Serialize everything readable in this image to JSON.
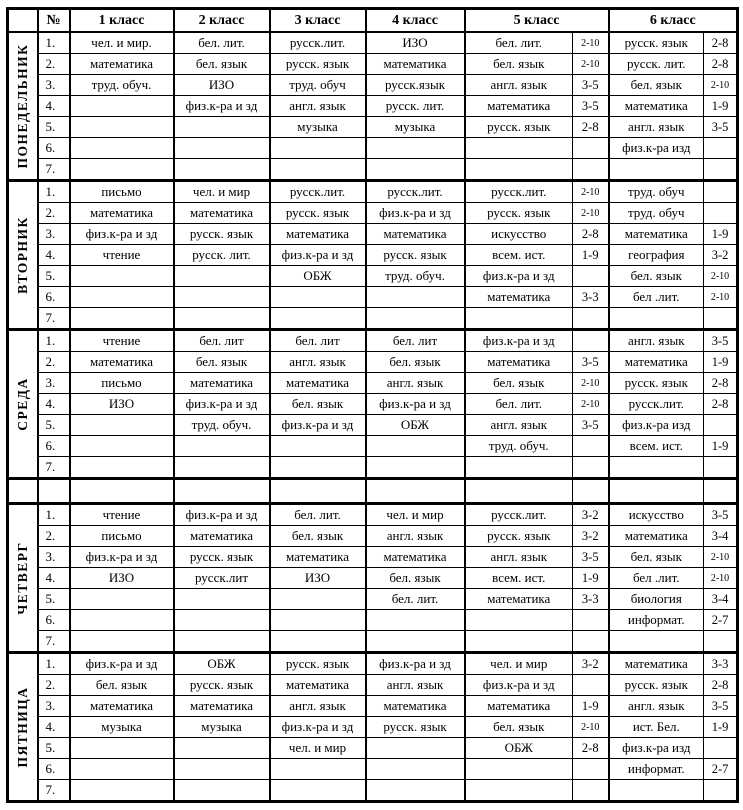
{
  "page": {
    "background": "#ffffff",
    "line_color": "#000000"
  },
  "header": {
    "corner": "",
    "num_label": "№",
    "class_labels": [
      "1 класс",
      "2 класс",
      "3 класс",
      "4 класс",
      "5 класс",
      "6 класс"
    ]
  },
  "days": [
    {
      "label": "ПОНЕДЕЛЬНИК",
      "rows": [
        {
          "n": "1.",
          "cells": [
            "чел. и мир.",
            "бел. лит.",
            "русск.лит.",
            "ИЗО",
            "бел. лит.",
            "2-10",
            "русск. язык",
            "2-8"
          ]
        },
        {
          "n": "2.",
          "cells": [
            "математика",
            "бел. язык",
            "русск. язык",
            "математика",
            "бел. язык",
            "2-10",
            "русск. лит.",
            "2-8"
          ]
        },
        {
          "n": "3.",
          "cells": [
            "труд. обуч.",
            "ИЗО",
            "труд. обуч",
            "русск.язык",
            "англ. язык",
            "3-5",
            "бел. язык",
            "2-10"
          ]
        },
        {
          "n": "4.",
          "cells": [
            "",
            "физ.к-ра и зд",
            "англ. язык",
            "русск. лит.",
            "математика",
            "3-5",
            "математика",
            "1-9"
          ]
        },
        {
          "n": "5.",
          "cells": [
            "",
            "",
            "музыка",
            "музыка",
            "русск. язык",
            "2-8",
            "англ. язык",
            "3-5"
          ]
        },
        {
          "n": "6.",
          "cells": [
            "",
            "",
            "",
            "",
            "",
            "",
            "физ.к-ра изд",
            ""
          ]
        },
        {
          "n": "7.",
          "cells": [
            "",
            "",
            "",
            "",
            "",
            "",
            "",
            ""
          ]
        }
      ]
    },
    {
      "label": "ВТОРНИК",
      "rows": [
        {
          "n": "1.",
          "cells": [
            "письмо",
            "чел. и мир",
            "русск.лит.",
            "русск.лит.",
            "русск.лит.",
            "2-10",
            "труд. обуч",
            ""
          ]
        },
        {
          "n": "2.",
          "cells": [
            "математика",
            "математика",
            "русск. язык",
            "физ.к-ра и зд",
            "русск. язык",
            "2-10",
            "труд. обуч",
            ""
          ]
        },
        {
          "n": "3.",
          "cells": [
            "физ.к-ра и зд",
            "русск. язык",
            "математика",
            "математика",
            "искусство",
            "2-8",
            "математика",
            "1-9"
          ]
        },
        {
          "n": "4.",
          "cells": [
            "чтение",
            "русск. лит.",
            "физ.к-ра и зд",
            "русск. язык",
            "всем. ист.",
            "1-9",
            "география",
            "3-2"
          ]
        },
        {
          "n": "5.",
          "cells": [
            "",
            "",
            "ОБЖ",
            "труд. обуч.",
            "физ.к-ра и зд",
            "",
            "бел. язык",
            "2-10"
          ]
        },
        {
          "n": "6.",
          "cells": [
            "",
            "",
            "",
            "",
            "математика",
            "3-3",
            "бел .лит.",
            "2-10"
          ]
        },
        {
          "n": "7.",
          "cells": [
            "",
            "",
            "",
            "",
            "",
            "",
            "",
            ""
          ]
        }
      ]
    },
    {
      "label": "СРЕДА",
      "rows": [
        {
          "n": "1.",
          "cells": [
            "чтение",
            "бел. лит",
            "бел. лит",
            "бел. лит",
            "физ.к-ра и зд",
            "",
            "англ. язык",
            "3-5"
          ]
        },
        {
          "n": "2.",
          "cells": [
            "математика",
            "бел. язык",
            "англ. язык",
            "бел. язык",
            "математика",
            "3-5",
            "математика",
            "1-9"
          ]
        },
        {
          "n": "3.",
          "cells": [
            "письмо",
            "математика",
            "математика",
            "англ. язык",
            "бел. язык",
            "2-10",
            "русск. язык",
            "2-8"
          ]
        },
        {
          "n": "4.",
          "cells": [
            "ИЗО",
            "физ.к-ра и зд",
            "бел. язык",
            "физ.к-ра и зд",
            "бел. лит.",
            "2-10",
            "русск.лит.",
            "2-8"
          ]
        },
        {
          "n": "5.",
          "cells": [
            "",
            "труд. обуч.",
            "физ.к-ра и зд",
            "ОБЖ",
            "англ. язык",
            "3-5",
            "физ.к-ра изд",
            ""
          ]
        },
        {
          "n": "6.",
          "cells": [
            "",
            "",
            "",
            "",
            "труд. обуч.",
            "",
            "всем. ист.",
            "1-9"
          ]
        },
        {
          "n": "7.",
          "cells": [
            "",
            "",
            "",
            "",
            "",
            "",
            "",
            ""
          ]
        }
      ]
    },
    {
      "label": "",
      "spacer": true,
      "rows": [
        {
          "n": "",
          "cells": [
            "",
            "",
            "",
            "",
            "",
            "",
            "",
            ""
          ]
        }
      ]
    },
    {
      "label": "ЧЕТВЕРГ",
      "rows": [
        {
          "n": "1.",
          "cells": [
            "чтение",
            "физ.к-ра и зд",
            "бел. лит.",
            "чел. и мир",
            "русск.лит.",
            "3-2",
            "искусство",
            "3-5"
          ]
        },
        {
          "n": "2.",
          "cells": [
            "письмо",
            "математика",
            "бел. язык",
            "англ. язык",
            "русск. язык",
            "3-2",
            "математика",
            "3-4"
          ]
        },
        {
          "n": "3.",
          "cells": [
            "физ.к-ра и зд",
            "русск. язык",
            "математика",
            "математика",
            "англ. язык",
            "3-5",
            "бел. язык",
            "2-10"
          ]
        },
        {
          "n": "4.",
          "cells": [
            "ИЗО",
            "русск.лит",
            "ИЗО",
            "бел. язык",
            "всем. ист.",
            "1-9",
            "бел .лит.",
            "2-10"
          ]
        },
        {
          "n": "5.",
          "cells": [
            "",
            "",
            "",
            "бел. лит.",
            "математика",
            "3-3",
            "биология",
            "3-4"
          ]
        },
        {
          "n": "6.",
          "cells": [
            "",
            "",
            "",
            "",
            "",
            "",
            "информат.",
            "2-7"
          ]
        },
        {
          "n": "7.",
          "cells": [
            "",
            "",
            "",
            "",
            "",
            "",
            "",
            ""
          ]
        }
      ]
    },
    {
      "label": "ПЯТНИЦА",
      "rows": [
        {
          "n": "1.",
          "cells": [
            "физ.к-ра и зд",
            "ОБЖ",
            "русск. язык",
            "физ.к-ра и зд",
            "чел. и мир",
            "3-2",
            "математика",
            "3-3"
          ]
        },
        {
          "n": "2.",
          "cells": [
            "бел. язык",
            "русск. язык",
            "математика",
            "англ. язык",
            "физ.к-ра и зд",
            "",
            "русск. язык",
            "2-8"
          ]
        },
        {
          "n": "3.",
          "cells": [
            "математика",
            "математика",
            "англ. язык",
            "математика",
            "математика",
            "1-9",
            "англ. язык",
            "3-5"
          ]
        },
        {
          "n": "4.",
          "cells": [
            "музыка",
            "музыка",
            "физ.к-ра и зд",
            "русск. язык",
            "бел. язык",
            "2-10",
            "ист. Бел.",
            "1-9"
          ]
        },
        {
          "n": "5.",
          "cells": [
            "",
            "",
            "чел. и мир",
            "",
            "ОБЖ",
            "2-8",
            "физ.к-ра изд",
            ""
          ]
        },
        {
          "n": "6.",
          "cells": [
            "",
            "",
            "",
            "",
            "",
            "",
            "информат.",
            "2-7"
          ]
        },
        {
          "n": "7.",
          "cells": [
            "",
            "",
            "",
            "",
            "",
            "",
            "",
            ""
          ]
        }
      ]
    }
  ]
}
